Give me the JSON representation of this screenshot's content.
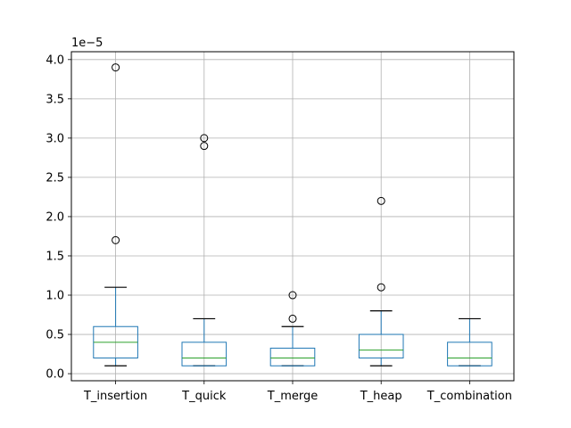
{
  "chart_data": {
    "type": "box",
    "title": "",
    "xlabel": "",
    "ylabel": "",
    "y_offset_label": "1e−5",
    "ylim": [
      -0.09,
      4.1
    ],
    "yticks": [
      0.0,
      0.5,
      1.0,
      1.5,
      2.0,
      2.5,
      3.0,
      3.5,
      4.0
    ],
    "ytick_labels": [
      "0.0",
      "0.5",
      "1.0",
      "1.5",
      "2.0",
      "2.5",
      "3.0",
      "3.5",
      "4.0"
    ],
    "grid": true,
    "categories": [
      "T_insertion",
      "T_quick",
      "T_merge",
      "T_heap",
      "T_combination"
    ],
    "boxes": [
      {
        "name": "T_insertion",
        "whisker_low": 0.1,
        "q1": 0.2,
        "median": 0.4,
        "q3": 0.6,
        "whisker_high": 1.1,
        "outliers": [
          1.7,
          3.9
        ]
      },
      {
        "name": "T_quick",
        "whisker_low": 0.1,
        "q1": 0.1,
        "median": 0.2,
        "q3": 0.4,
        "whisker_high": 0.7,
        "outliers": [
          2.9,
          3.0
        ]
      },
      {
        "name": "T_merge",
        "whisker_low": 0.1,
        "q1": 0.1,
        "median": 0.2,
        "q3": 0.325,
        "whisker_high": 0.6,
        "outliers": [
          0.7,
          1.0
        ]
      },
      {
        "name": "T_heap",
        "whisker_low": 0.1,
        "q1": 0.2,
        "median": 0.3,
        "q3": 0.5,
        "whisker_high": 0.8,
        "outliers": [
          1.1,
          2.2
        ]
      },
      {
        "name": "T_combination",
        "whisker_low": 0.1,
        "q1": 0.1,
        "median": 0.2,
        "q3": 0.4,
        "whisker_high": 0.7,
        "outliers": []
      }
    ],
    "colors": {
      "box": "#1f77b4",
      "median": "#2ca02c",
      "whisker": "#000000",
      "grid": "#b0b0b0",
      "flier": "#000000"
    }
  }
}
